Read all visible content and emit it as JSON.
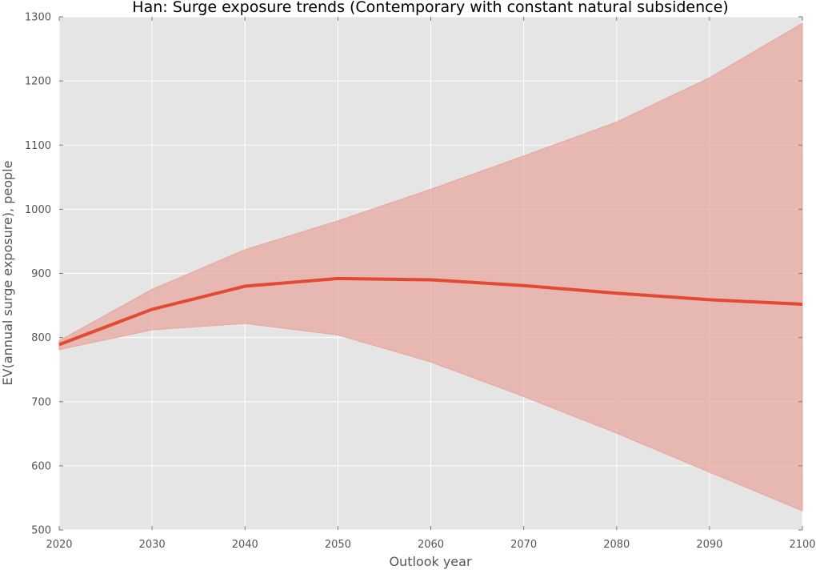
{
  "chart_data": {
    "type": "area",
    "title": "Han: Surge exposure trends (Contemporary with constant natural subsidence)",
    "xlabel": "Outlook year",
    "ylabel": "EV(annual surge exposure), people",
    "x": [
      2020,
      2030,
      2040,
      2050,
      2060,
      2070,
      2080,
      2090,
      2100
    ],
    "xlim": [
      2020,
      2100
    ],
    "ylim": [
      500,
      1300
    ],
    "xticks": [
      "2020",
      "2030",
      "2040",
      "2050",
      "2060",
      "2070",
      "2080",
      "2090",
      "2100"
    ],
    "yticks": [
      "500",
      "600",
      "700",
      "800",
      "900",
      "1000",
      "1100",
      "1200",
      "1300"
    ],
    "grid": true,
    "background": "#e5e5e5",
    "series": [
      {
        "values": [
          789,
          844,
          880,
          892,
          890,
          881,
          869,
          859,
          852
        ],
        "lower": [
          781,
          812,
          822,
          804,
          762,
          708,
          651,
          590,
          530
        ],
        "upper": [
          795,
          875,
          937,
          982,
          1031,
          1083,
          1136,
          1205,
          1290
        ],
        "line_color": "#e24a33",
        "band_color": "#e8a49b"
      }
    ]
  }
}
